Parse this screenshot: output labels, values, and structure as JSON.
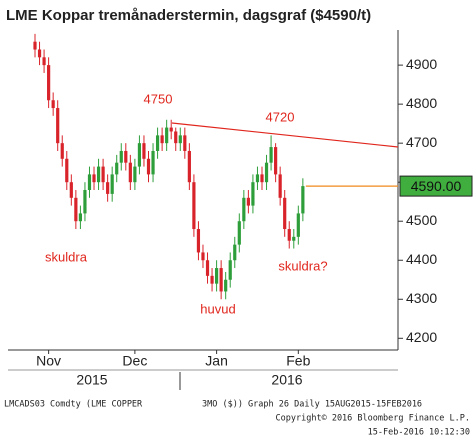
{
  "chart_data": {
    "type": "candlestick",
    "title": "LME Koppar tremånaderstermin, dagsgraf ($4590/t)",
    "open": [
      4960,
      4940,
      4920,
      4900,
      4810,
      4790,
      4700,
      4660,
      4600,
      4560,
      4500,
      4520,
      4580,
      4620,
      4600,
      4640,
      4600,
      4570,
      4620,
      4650,
      4680,
      4650,
      4600,
      4640,
      4700,
      4660,
      4620,
      4680,
      4720,
      4700,
      4740,
      4730,
      4700,
      4720,
      4680,
      4600,
      4480,
      4420,
      4400,
      4360,
      4340,
      4380,
      4320,
      4350,
      4400,
      4440,
      4500,
      4560,
      4540,
      4600,
      4620,
      4600,
      4650,
      4690,
      4620,
      4560,
      4480,
      4450,
      4460,
      4520
    ],
    "high": [
      4980,
      4960,
      4940,
      4920,
      4830,
      4810,
      4720,
      4680,
      4620,
      4580,
      4540,
      4600,
      4640,
      4640,
      4660,
      4660,
      4620,
      4640,
      4670,
      4700,
      4700,
      4670,
      4660,
      4720,
      4720,
      4680,
      4700,
      4740,
      4740,
      4760,
      4760,
      4740,
      4740,
      4740,
      4700,
      4620,
      4500,
      4440,
      4420,
      4380,
      4400,
      4400,
      4370,
      4420,
      4460,
      4520,
      4580,
      4580,
      4620,
      4640,
      4640,
      4670,
      4720,
      4700,
      4640,
      4580,
      4500,
      4480,
      4540,
      4610
    ],
    "low": [
      4920,
      4900,
      4880,
      4790,
      4770,
      4680,
      4640,
      4580,
      4540,
      4480,
      4480,
      4500,
      4560,
      4580,
      4580,
      4580,
      4550,
      4550,
      4600,
      4630,
      4630,
      4580,
      4580,
      4620,
      4640,
      4600,
      4600,
      4660,
      4680,
      4680,
      4710,
      4680,
      4680,
      4660,
      4580,
      4460,
      4400,
      4380,
      4340,
      4320,
      4320,
      4300,
      4300,
      4330,
      4380,
      4420,
      4480,
      4520,
      4520,
      4580,
      4580,
      4580,
      4630,
      4600,
      4540,
      4460,
      4430,
      4430,
      4440,
      4500
    ],
    "close": [
      4940,
      4920,
      4900,
      4810,
      4790,
      4700,
      4660,
      4600,
      4560,
      4500,
      4520,
      4580,
      4620,
      4600,
      4640,
      4600,
      4570,
      4620,
      4650,
      4680,
      4650,
      4600,
      4640,
      4700,
      4660,
      4620,
      4680,
      4720,
      4700,
      4740,
      4730,
      4700,
      4720,
      4680,
      4600,
      4480,
      4420,
      4400,
      4360,
      4340,
      4380,
      4320,
      4350,
      4400,
      4440,
      4500,
      4560,
      4540,
      4600,
      4620,
      4600,
      4650,
      4690,
      4620,
      4560,
      4480,
      4450,
      4460,
      4520,
      4590
    ],
    "up_color": "#2e9e3a",
    "down_color": "#d9232a",
    "ylim": [
      4170,
      4990
    ],
    "yticks": [
      4200,
      4300,
      4400,
      4500,
      4600,
      4700,
      4800,
      4900
    ],
    "xticks": [
      {
        "value": 3,
        "label": "Nov"
      },
      {
        "value": 22,
        "label": "Dec"
      },
      {
        "value": 40,
        "label": "Jan"
      },
      {
        "value": 58,
        "label": "Feb"
      }
    ],
    "years": [
      "2015",
      "2016"
    ],
    "last_price": {
      "value": 4590,
      "label": "4590.00"
    },
    "annotations": [
      "4750",
      "4720",
      "skuldra",
      "huvud",
      "skuldra?"
    ],
    "footer": [
      "LMCADS03 Comdty (LME COPPER",
      "3MO ($)) Graph 26  Daily 15AUG2015-15FEB2016",
      "Copyright© 2016 Bloomberg Finance L.P.",
      "15-Feb-2016 10:12:30"
    ]
  }
}
